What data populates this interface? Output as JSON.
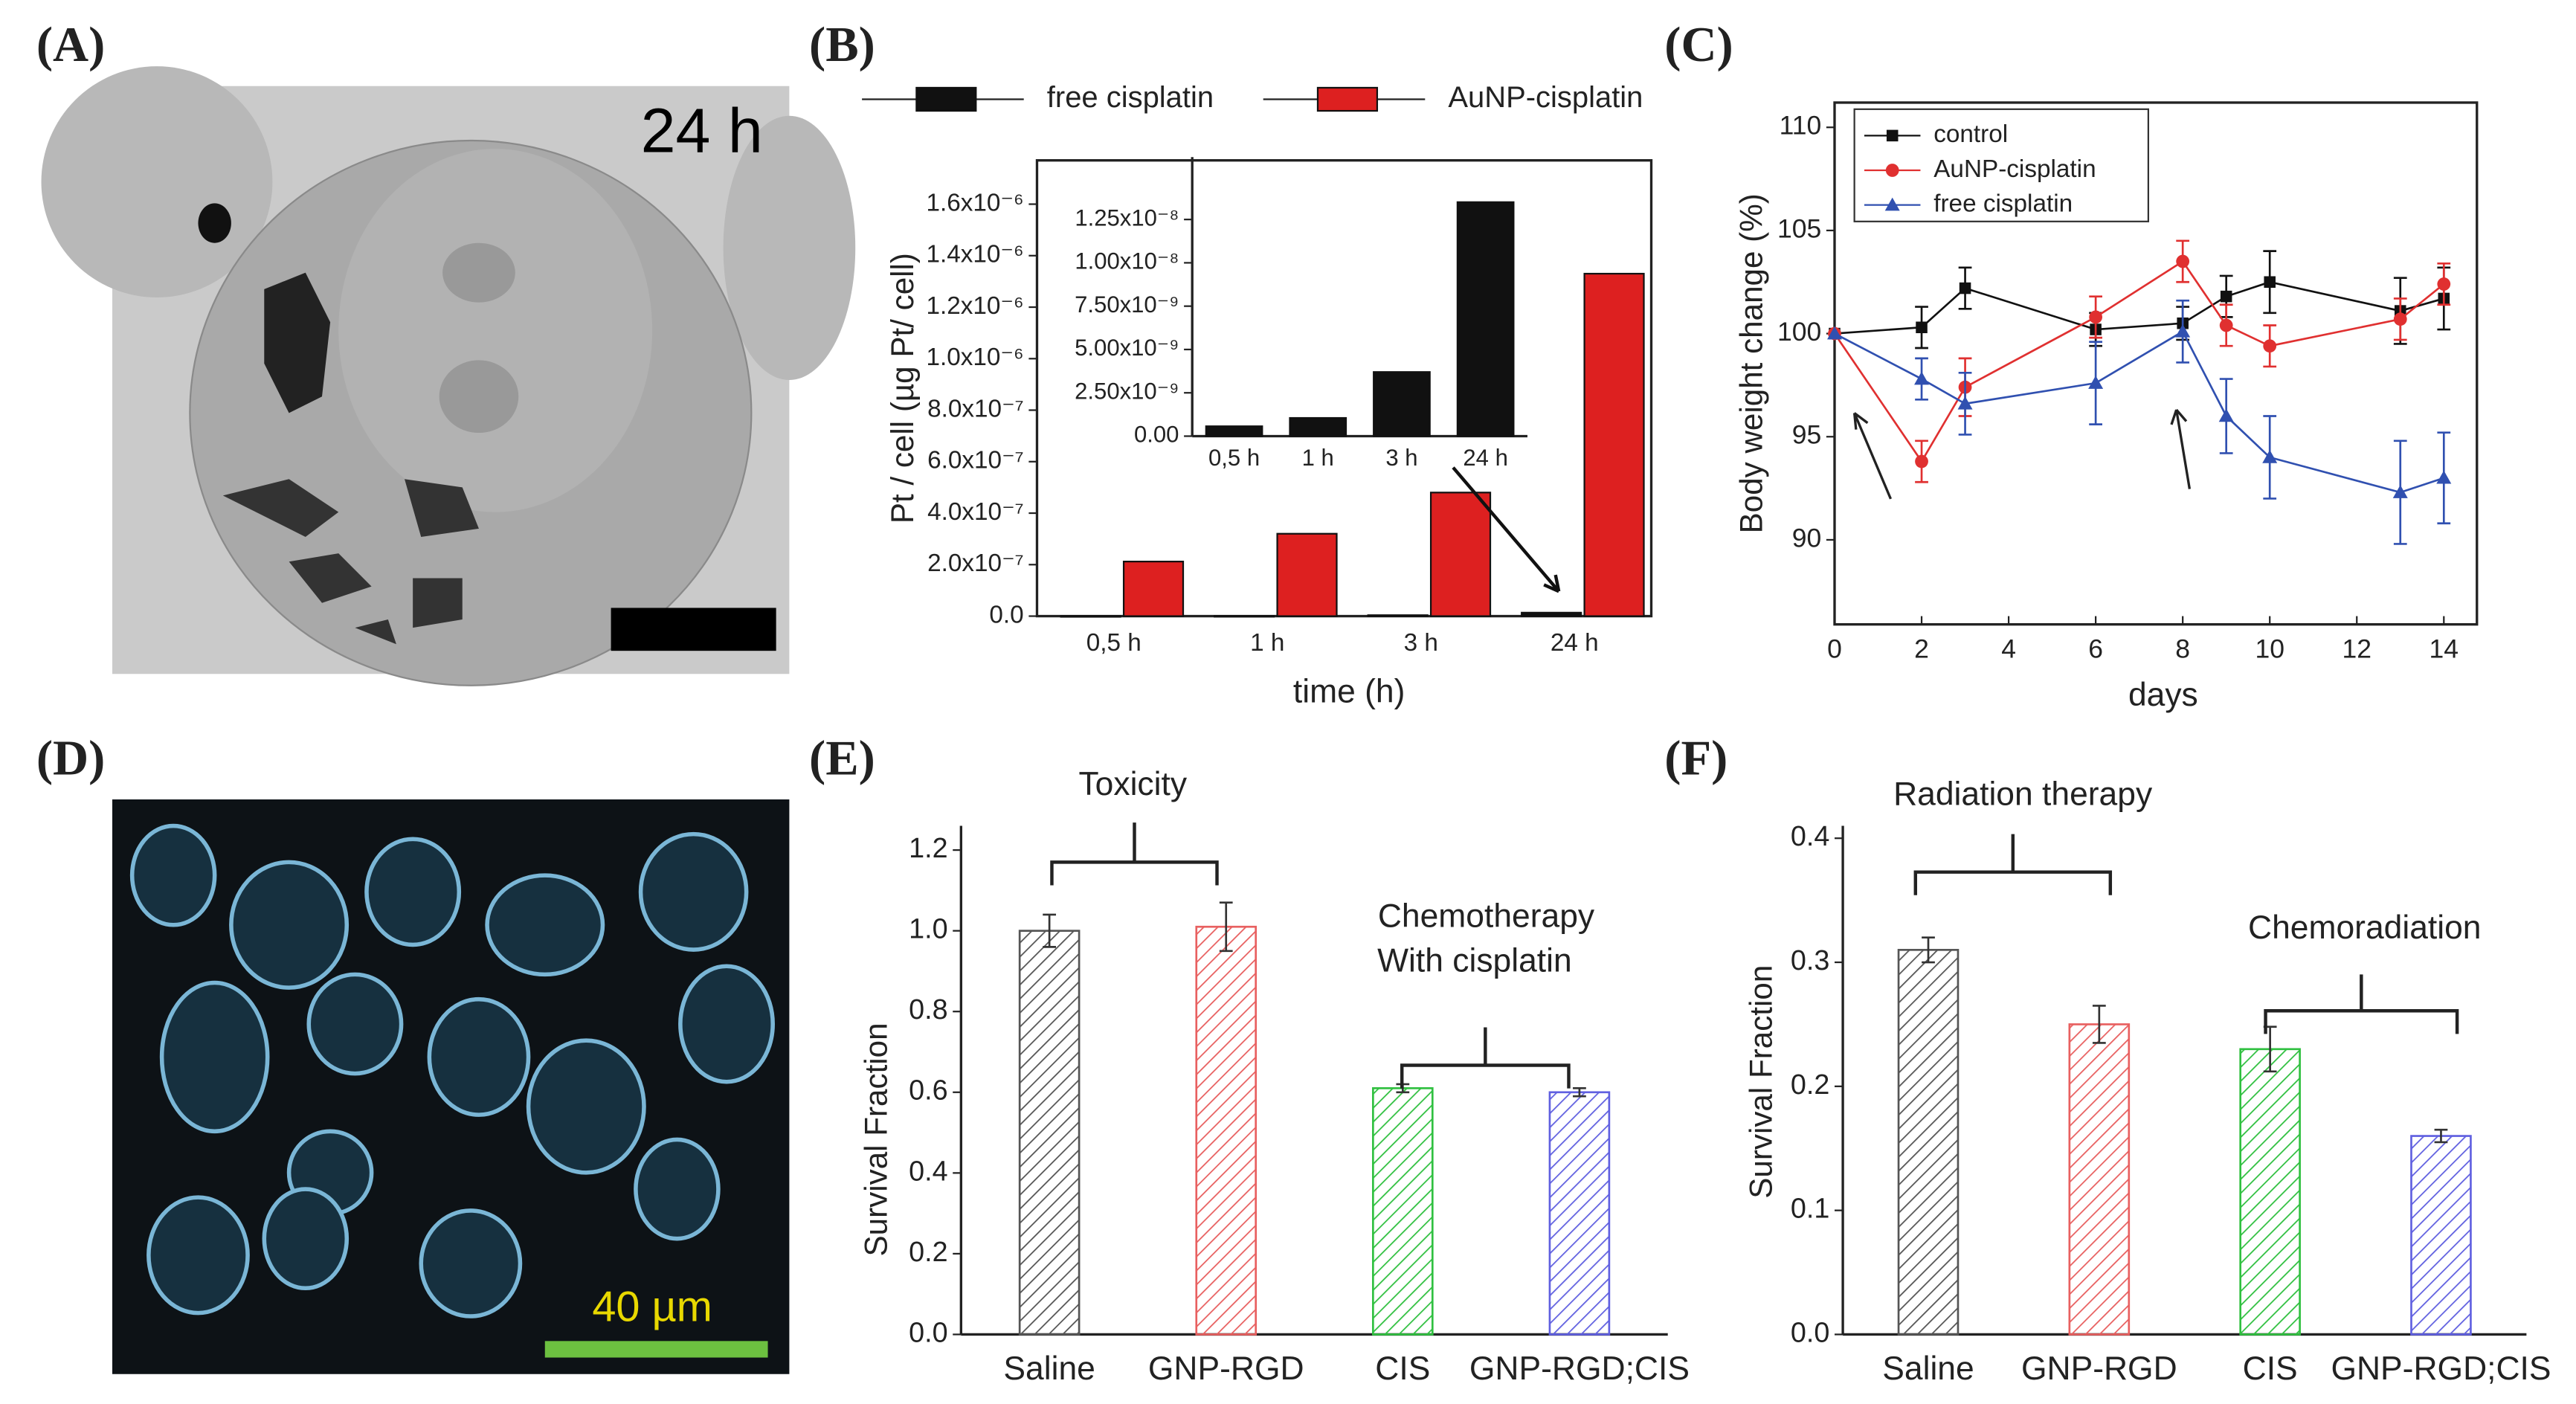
{
  "panels": [
    {
      "label": "(A)",
      "text": "24 h"
    },
    {
      "label": "(D)",
      "text": "40 µm"
    }
  ],
  "chart_data": [
    {
      "type": "bar",
      "panel": "(B)",
      "categories": [
        "0,5 h",
        "1 h",
        "3 h",
        "24 h"
      ],
      "series": [
        {
          "name": "free cisplatin",
          "color": "#111111",
          "values": [
            5.7e-10,
            1.05e-09,
            3.7e-09,
            1.35e-08
          ]
        },
        {
          "name": "AuNP-cisplatin",
          "color": "#dd2020",
          "values": [
            2.12e-07,
            3.2e-07,
            4.8e-07,
            1.33e-06
          ]
        }
      ],
      "xlabel": "time (h)",
      "ylabel": "Pt / cell (µg Pt/ cell)",
      "ylim": [
        0,
        1.77e-06
      ],
      "yticks": [
        {
          "value": 0,
          "label": "0.0"
        },
        {
          "value": 2e-07,
          "label": "2.0x10⁻⁷"
        },
        {
          "value": 4e-07,
          "label": "4.0x10⁻⁷"
        },
        {
          "value": 6e-07,
          "label": "6.0x10⁻⁷"
        },
        {
          "value": 8e-07,
          "label": "8.0x10⁻⁷"
        },
        {
          "value": 1e-06,
          "label": "1.0x10⁻⁶"
        },
        {
          "value": 1.2e-06,
          "label": "1.2x10⁻⁶"
        },
        {
          "value": 1.4e-06,
          "label": "1.4x10⁻⁶"
        },
        {
          "value": 1.6e-06,
          "label": "1.6x10⁻⁶"
        }
      ]
    },
    {
      "type": "bar",
      "categories": [
        "0,5 h",
        "1 h",
        "3 h",
        "24 h"
      ],
      "series": [
        {
          "color": "#111111",
          "values": [
            5.7e-10,
            1.05e-09,
            3.7e-09,
            1.35e-08
          ]
        }
      ],
      "ylim": [
        0,
        1.61e-08
      ],
      "yticks": [
        {
          "value": 0,
          "label": "0.00"
        },
        {
          "value": 2.5e-09,
          "label": "2.50x10⁻⁹"
        },
        {
          "value": 5e-09,
          "label": "5.00x10⁻⁹"
        },
        {
          "value": 7.5e-09,
          "label": "7.50x10⁻⁹"
        },
        {
          "value": 1e-08,
          "label": "1.00x10⁻⁸"
        },
        {
          "value": 1.25e-08,
          "label": "1.25x10⁻⁸"
        }
      ]
    },
    {
      "type": "line",
      "panel": "(C)",
      "xlabel": "days",
      "ylabel": "Body weight change (%)",
      "x": [
        0,
        2,
        3,
        6,
        8,
        9,
        10,
        13,
        14
      ],
      "series": [
        {
          "name": "control",
          "color": "#111111",
          "marker": "square",
          "values": [
            100,
            100.3,
            102.2,
            100.2,
            100.5,
            101.8,
            102.5,
            101.1,
            101.7
          ],
          "errors": [
            0,
            1,
            1,
            0.8,
            0.8,
            1,
            1.5,
            1.6,
            1.5
          ]
        },
        {
          "name": "AuNP-cisplatin",
          "color": "#e03030",
          "marker": "circle",
          "values": [
            100,
            93.8,
            97.4,
            100.8,
            103.5,
            100.4,
            99.4,
            100.7,
            102.4
          ],
          "errors": [
            0,
            1,
            1.4,
            1,
            1,
            1,
            1,
            1,
            1
          ]
        },
        {
          "name": "free cisplatin",
          "color": "#3050b0",
          "marker": "triangle",
          "values": [
            100,
            97.8,
            96.6,
            97.6,
            100.1,
            96,
            94,
            92.3,
            93
          ],
          "errors": [
            0,
            1,
            1.5,
            2,
            1.5,
            1.8,
            2,
            2.5,
            2.2
          ]
        }
      ],
      "xlim": [
        0,
        14.76
      ],
      "xticks": [
        0,
        2,
        4,
        6,
        8,
        10,
        12,
        14
      ],
      "ylim": [
        85.9,
        111.2
      ],
      "yticks": [
        90,
        95,
        100,
        105,
        110
      ],
      "legend": "upper left"
    },
    {
      "type": "bar",
      "panel": "(E)",
      "ylabel": "Survival Fraction",
      "categories": [
        "Saline",
        "GNP-RGD",
        "CIS",
        "GNP-RGD;CIS"
      ],
      "values": [
        1.0,
        1.01,
        0.61,
        0.6
      ],
      "errors": [
        0.04,
        0.06,
        0.01,
        0.01
      ],
      "colors": [
        "#555555",
        "#e86060",
        "#30c040",
        "#6060e0"
      ],
      "hatch": true,
      "ylim": [
        0,
        1.26
      ],
      "yticks": [
        {
          "value": 0,
          "label": "0.0"
        },
        0.2,
        0.4,
        0.6,
        0.8,
        {
          "value": 1,
          "label": "1.0"
        },
        1.2
      ],
      "annotations": [
        "Toxicity",
        "Chemotherapy",
        "With cisplatin"
      ]
    },
    {
      "type": "bar",
      "panel": "(F)",
      "ylabel": "Survival Fraction",
      "categories": [
        "Saline",
        "GNP-RGD",
        "CIS",
        "GNP-RGD;CIS"
      ],
      "values": [
        0.31,
        0.25,
        0.23,
        0.16
      ],
      "errors": [
        0.01,
        0.015,
        0.018,
        0.005
      ],
      "colors": [
        "#555555",
        "#e86060",
        "#30c040",
        "#6060e0"
      ],
      "hatch": true,
      "ylim": [
        0,
        0.41
      ],
      "yticks": [
        {
          "value": 0,
          "label": "0.0"
        },
        0.1,
        0.2,
        0.3,
        0.4
      ],
      "annotations": [
        "Radiation therapy",
        "Chemoradiation"
      ]
    }
  ]
}
